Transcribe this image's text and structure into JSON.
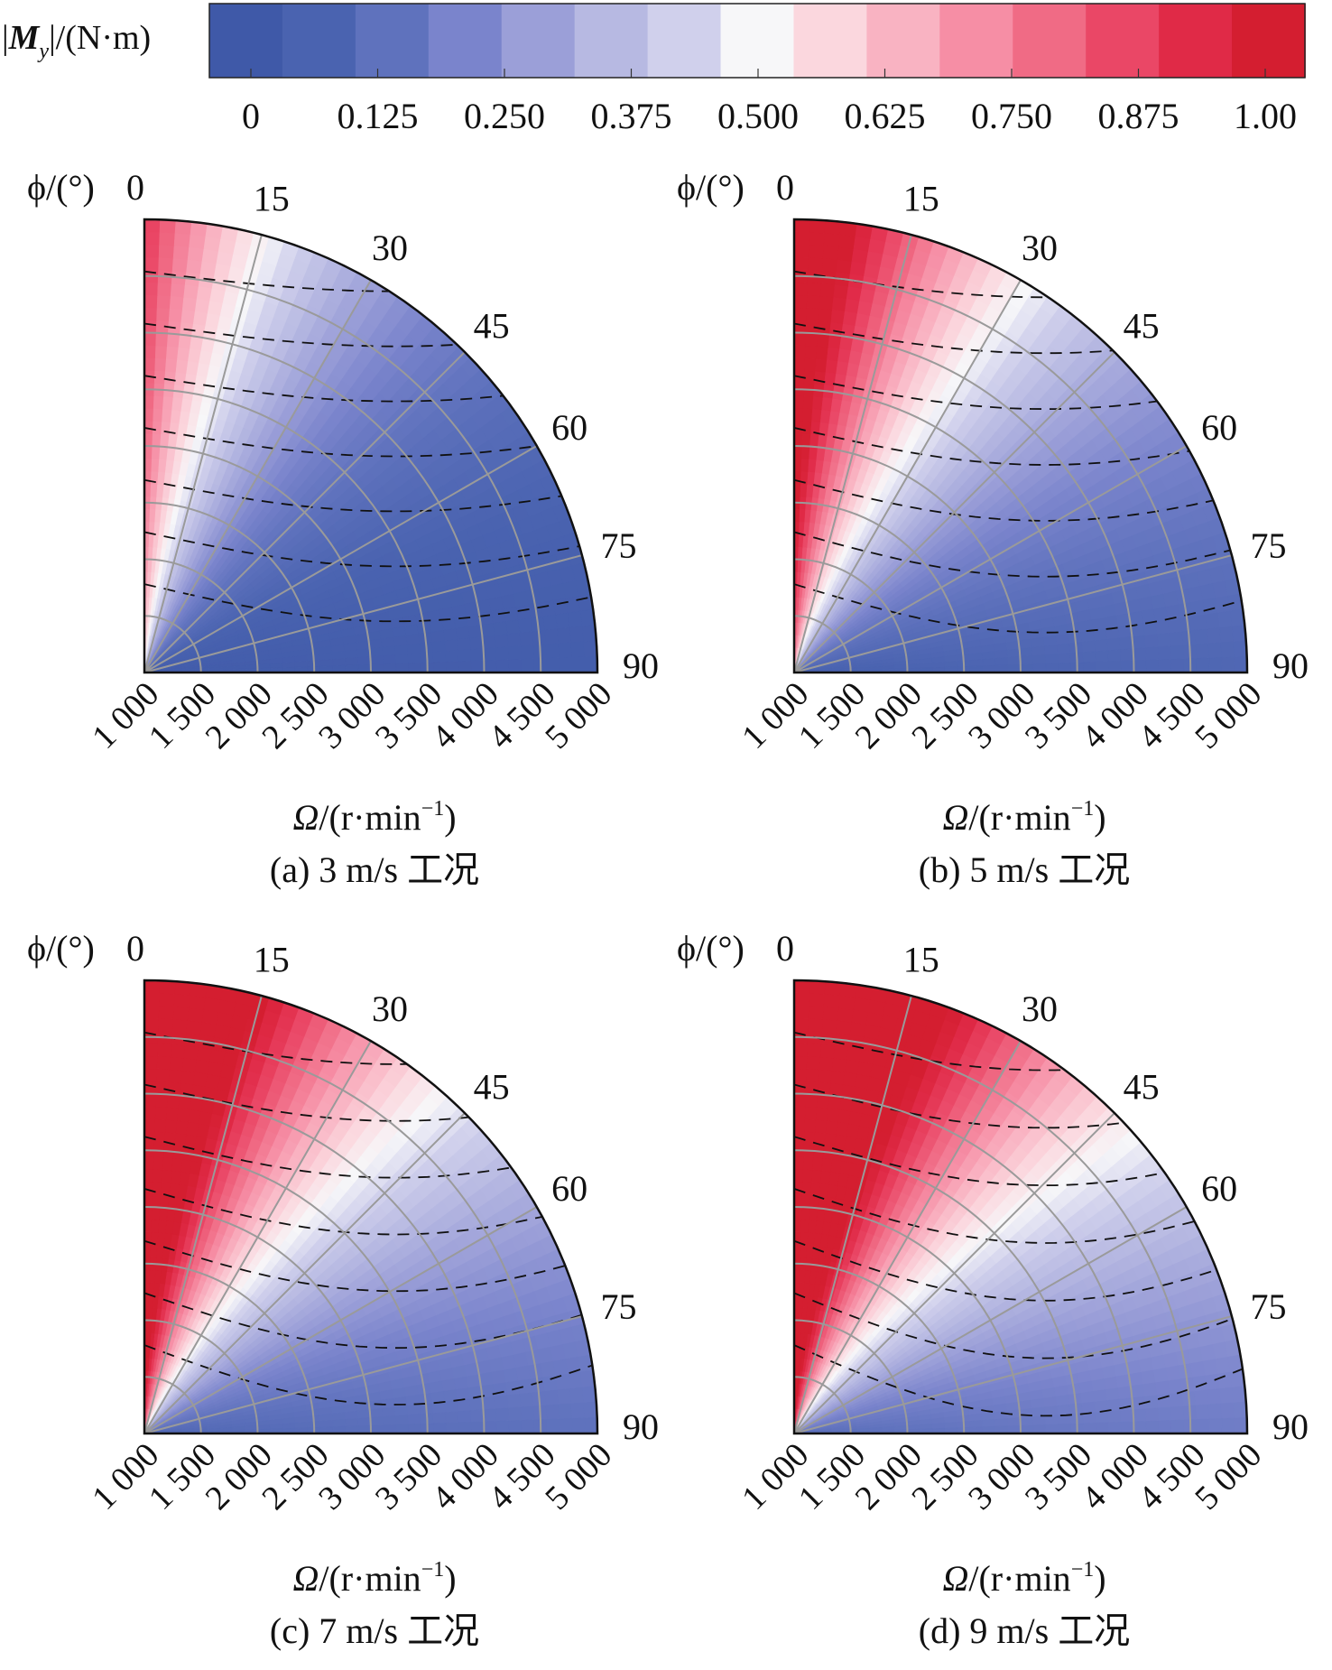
{
  "colorbar": {
    "label_prefix": "|",
    "label_symbol": "M",
    "label_subscript": "y",
    "label_suffix": "|/(N·m)",
    "ticks": [
      "0",
      "0.125",
      "0.250",
      "0.375",
      "0.500",
      "0.625",
      "0.750",
      "0.875",
      "1.00"
    ],
    "range": [
      0,
      1.0
    ],
    "colors": [
      "#3f59a8",
      "#4a63b0",
      "#5f72bd",
      "#7a84cc",
      "#9b9fd8",
      "#b7b9e2",
      "#d0d0ec",
      "#f7f7f9",
      "#fbd7de",
      "#f9b3c2",
      "#f68ea5",
      "#f06b85",
      "#ea4766",
      "#e02a47",
      "#d41e30"
    ]
  },
  "panel_text": {
    "angle_axis_label": "ϕ/(°)",
    "radial_axis_label_symbol": "Ω",
    "radial_axis_label_rest": "/(r·min",
    "radial_axis_label_exp": "−1",
    "radial_axis_label_close": ")"
  },
  "chart_data": [
    {
      "type": "heatmap",
      "coordinate_system": "polar",
      "caption": "(a) 3 m/s 工况",
      "theta_ticks": [
        "0",
        "15",
        "30",
        "45",
        "60",
        "75",
        "90"
      ],
      "theta_range_deg": [
        0,
        90
      ],
      "r_ticks": [
        "1 000",
        "1 500",
        "2 000",
        "2 500",
        "3 000",
        "3 500",
        "4 000",
        "4 500",
        "5 000"
      ],
      "r_range": [
        1000,
        5000
      ],
      "colorbar_range": [
        0,
        1.0
      ],
      "field": {
        "amplitude": 0.9,
        "angle_decay_deg": 27,
        "speed_power": 0.25
      }
    },
    {
      "type": "heatmap",
      "coordinate_system": "polar",
      "caption": "(b) 5 m/s 工况",
      "theta_ticks": [
        "0",
        "15",
        "30",
        "45",
        "60",
        "75",
        "90"
      ],
      "theta_range_deg": [
        0,
        90
      ],
      "r_ticks": [
        "1 000",
        "1 500",
        "2 000",
        "2 500",
        "3 000",
        "3 500",
        "4 000",
        "4 500",
        "5 000"
      ],
      "r_range": [
        1000,
        5000
      ],
      "colorbar_range": [
        0,
        1.0
      ],
      "field": {
        "amplitude": 1.25,
        "angle_decay_deg": 34,
        "speed_power": 0.28
      }
    },
    {
      "type": "heatmap",
      "coordinate_system": "polar",
      "caption": "(c) 7 m/s 工况",
      "theta_ticks": [
        "0",
        "15",
        "30",
        "45",
        "60",
        "75",
        "90"
      ],
      "theta_range_deg": [
        0,
        90
      ],
      "r_ticks": [
        "1 000",
        "1 500",
        "2 000",
        "2 500",
        "3 000",
        "3 500",
        "4 000",
        "4 500",
        "5 000"
      ],
      "r_range": [
        1000,
        5000
      ],
      "colorbar_range": [
        0,
        1.0
      ],
      "field": {
        "amplitude": 1.5,
        "angle_decay_deg": 38,
        "speed_power": 0.3
      }
    },
    {
      "type": "heatmap",
      "coordinate_system": "polar",
      "caption": "(d) 9 m/s 工况",
      "theta_ticks": [
        "0",
        "15",
        "30",
        "45",
        "60",
        "75",
        "90"
      ],
      "theta_range_deg": [
        0,
        90
      ],
      "r_ticks": [
        "1 000",
        "1 500",
        "2 000",
        "2 500",
        "3 000",
        "3 500",
        "4 000",
        "4 500",
        "5 000"
      ],
      "r_range": [
        1000,
        5000
      ],
      "colorbar_range": [
        0,
        1.0
      ],
      "field": {
        "amplitude": 1.65,
        "angle_decay_deg": 41,
        "speed_power": 0.3
      }
    }
  ]
}
